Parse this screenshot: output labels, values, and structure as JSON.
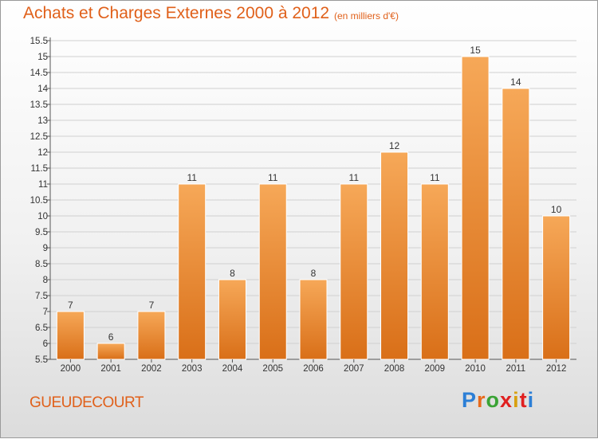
{
  "title": "Achats et Charges Externes 2000 à 2012",
  "unit_note": "(en milliers d'€)",
  "city": "GUEUDECOURT",
  "brand": {
    "letters": [
      "P",
      "r",
      "o",
      "x",
      "i",
      "t",
      "i"
    ],
    "colors": [
      "#2c7fd6",
      "#e86a1c",
      "#3aa335",
      "#e02020",
      "#d8a010",
      "#e02020",
      "#2c7fd6"
    ]
  },
  "colors": {
    "bar_top": "#f6a858",
    "bar_bottom": "#d96f18",
    "grid": "#d0d0d0",
    "axis": "#555555"
  },
  "chart_data": {
    "type": "bar",
    "title": "Achats et Charges Externes 2000 à 2012",
    "subtitle": "(en milliers d'€)",
    "categories": [
      "2000",
      "2001",
      "2002",
      "2003",
      "2004",
      "2005",
      "2006",
      "2007",
      "2008",
      "2009",
      "2010",
      "2011",
      "2012"
    ],
    "values": [
      7,
      6,
      7,
      11,
      8,
      11,
      8,
      11,
      12,
      11,
      15,
      14,
      10
    ],
    "value_labels": [
      "7",
      "6",
      "7",
      "11",
      "8",
      "11",
      "8",
      "11",
      "12",
      "11",
      "15",
      "14",
      "10"
    ],
    "yticks": [
      "5.5",
      "6",
      "6.5",
      "7",
      "7.5",
      "8",
      "8.5",
      "9",
      "9.5",
      "10",
      "10.5",
      "11",
      "11.5",
      "12",
      "12.5",
      "13",
      "13.5",
      "14",
      "14.5",
      "15",
      "15.5"
    ],
    "ylim": [
      5.5,
      15.5
    ],
    "grid": true,
    "legend": "none"
  }
}
